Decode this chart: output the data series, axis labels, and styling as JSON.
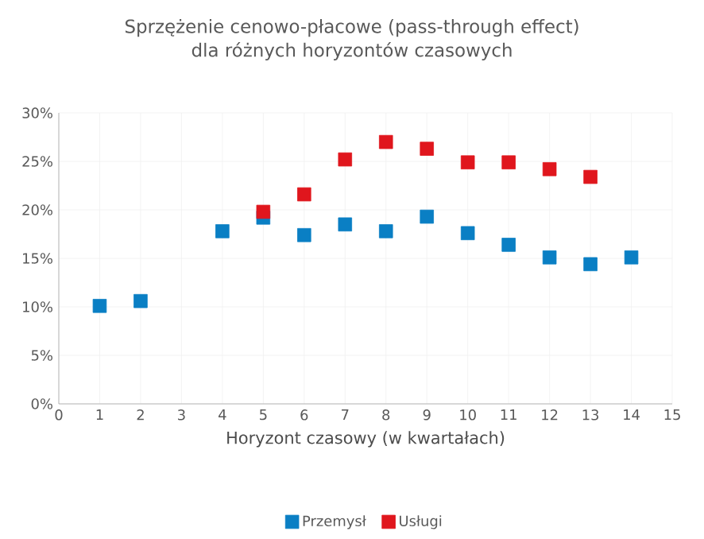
{
  "chart_data": {
    "type": "scatter",
    "title": "Sprzężenie cenowo-płacowe (pass-through effect)\ndla różnych horyzontów czasowych",
    "xlabel": "Horyzont czasowy (w kwartałach)",
    "xlim": [
      0,
      15
    ],
    "xticks": [
      0,
      1,
      2,
      3,
      4,
      5,
      6,
      7,
      8,
      9,
      10,
      11,
      12,
      13,
      14,
      15
    ],
    "ylim": [
      0,
      30
    ],
    "yticks": [
      {
        "value": 0,
        "label": "0%"
      },
      {
        "value": 5,
        "label": "5%"
      },
      {
        "value": 10,
        "label": "10%"
      },
      {
        "value": 15,
        "label": "15%"
      },
      {
        "value": 20,
        "label": "20%"
      },
      {
        "value": 25,
        "label": "25%"
      },
      {
        "value": 30,
        "label": "30%"
      }
    ],
    "grid": true,
    "legend": "bottom",
    "marker": "square",
    "series": [
      {
        "name": "Przemysł",
        "color": "#0a7fc4",
        "x": [
          1,
          2,
          4,
          5,
          6,
          7,
          8,
          9,
          10,
          11,
          12,
          13,
          14
        ],
        "values": [
          10.1,
          10.6,
          17.8,
          19.2,
          17.4,
          18.5,
          17.8,
          19.3,
          17.6,
          16.4,
          15.1,
          14.4,
          15.1
        ]
      },
      {
        "name": "Usługi",
        "color": "#e0161d",
        "x": [
          5,
          6,
          7,
          8,
          9,
          10,
          11,
          12,
          13
        ],
        "values": [
          19.8,
          21.6,
          25.2,
          27.0,
          26.3,
          24.9,
          24.9,
          24.2,
          23.4
        ]
      }
    ]
  }
}
